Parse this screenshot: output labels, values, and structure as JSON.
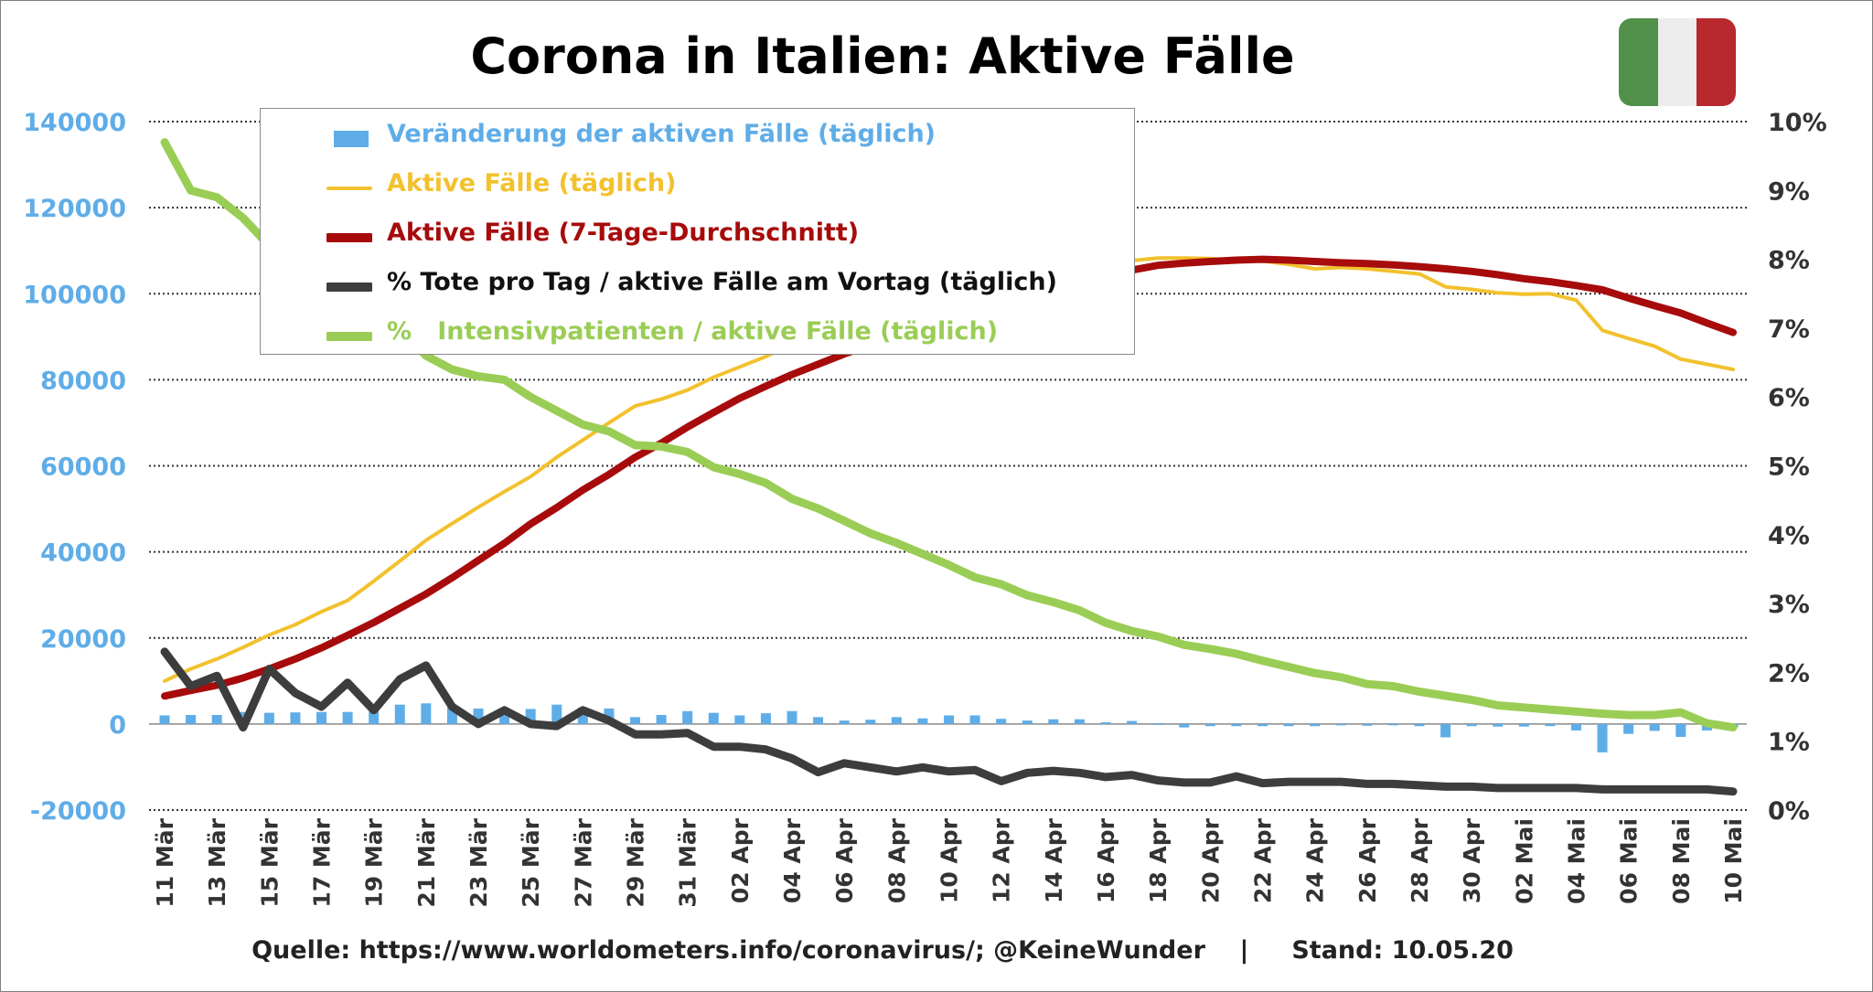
{
  "title": "Corona in Italien: Aktive Fälle",
  "footer": "Quelle: https://www.worldometers.info/coronavirus/; @KeineWunder    |     Stand: 10.05.20",
  "flag": {
    "colors": [
      "#509049",
      "#ededed",
      "#b8282e"
    ]
  },
  "legend": [
    {
      "label": "Veränderung der aktiven Fälle (täglich)",
      "color": "#5fade8",
      "kind": "bar"
    },
    {
      "label": "Aktive Fälle (täglich)",
      "color": "#f2c12e",
      "kind": "line-thin"
    },
    {
      "label": "Aktive Fälle (7-Tage-Durchschnitt)",
      "color": "#a70b0b",
      "kind": "line-thick"
    },
    {
      "label": "% Tote pro Tag / aktive Fälle am Vortag (täglich)",
      "color": "#3d3d3d",
      "kind": "line-thick"
    },
    {
      "label": "%   Intensivpatienten / aktive Fälle (täglich)",
      "color": "#9acd55",
      "kind": "line-thick"
    }
  ],
  "chart_data": {
    "type": "line",
    "title": "Corona in Italien: Aktive Fälle",
    "x": [
      "11 Mär",
      "12 Mär",
      "13 Mär",
      "14 Mär",
      "15 Mär",
      "16 Mär",
      "17 Mär",
      "18 Mär",
      "19 Mär",
      "20 Mär",
      "21 Mär",
      "22 Mär",
      "23 Mär",
      "24 Mär",
      "25 Mär",
      "26 Mär",
      "27 Mär",
      "28 Mär",
      "29 Mär",
      "30 Mär",
      "31 Mär",
      "01 Apr",
      "02 Apr",
      "03 Apr",
      "04 Apr",
      "05 Apr",
      "06 Apr",
      "07 Apr",
      "08 Apr",
      "09 Apr",
      "10 Apr",
      "11 Apr",
      "12 Apr",
      "13 Apr",
      "14 Apr",
      "15 Apr",
      "16 Apr",
      "17 Apr",
      "18 Apr",
      "19 Apr",
      "20 Apr",
      "21 Apr",
      "22 Apr",
      "23 Apr",
      "24 Apr",
      "25 Apr",
      "26 Apr",
      "27 Apr",
      "28 Apr",
      "29 Apr",
      "30 Apr",
      "01 Mai",
      "02 Mai",
      "03 Mai",
      "04 Mai",
      "05 Mai",
      "06 Mai",
      "07 Mai",
      "08 Mai",
      "09 Mai",
      "10 Mai"
    ],
    "x_tick_labels": [
      "11 Mär",
      "13 Mär",
      "15 Mär",
      "17 Mär",
      "19 Mär",
      "21 Mär",
      "23 Mär",
      "25 Mär",
      "27 Mär",
      "29 Mär",
      "31 Mär",
      "02 Apr",
      "04 Apr",
      "06 Apr",
      "08 Apr",
      "10 Apr",
      "12 Apr",
      "14 Apr",
      "16 Apr",
      "18 Apr",
      "20 Apr",
      "22 Apr",
      "24 Apr",
      "26 Apr",
      "28 Apr",
      "30 Apr",
      "02 Mai",
      "04 Mai",
      "06 Mai",
      "08 Mai",
      "10 Mai"
    ],
    "y_left": {
      "min": -20000,
      "max": 140000,
      "ticks": [
        "-20000",
        "0",
        "20000",
        "40000",
        "60000",
        "80000",
        "100000",
        "120000",
        "140000"
      ],
      "color": "#5fade8"
    },
    "y_right": {
      "min": 0,
      "max": 10,
      "ticks": [
        "0%",
        "1%",
        "2%",
        "3%",
        "4%",
        "5%",
        "6%",
        "7%",
        "8%",
        "9%",
        "10%"
      ],
      "color": "#333333"
    },
    "grid": "horizontal dotted",
    "legend_position": "top-left",
    "series": [
      {
        "name": "Veränderung der aktiven Fälle (täglich)",
        "type": "bar",
        "axis": "left",
        "color": "#5fade8",
        "values": [
          2000,
          2100,
          2100,
          2800,
          2600,
          2700,
          2800,
          2800,
          2900,
          4500,
          4800,
          3800,
          3600,
          3000,
          3500,
          4500,
          3800,
          3600,
          1600,
          2100,
          3000,
          2600,
          2000,
          2500,
          3000,
          1600,
          800,
          1000,
          1600,
          1300,
          2000,
          2000,
          1200,
          800,
          1100,
          1100,
          400,
          700,
          0,
          -800,
          -500,
          -500,
          -500,
          -500,
          -500,
          -300,
          -400,
          -300,
          -500,
          -3100,
          -500,
          -600,
          -600,
          -500,
          -1500,
          -6600,
          -2300,
          -1600,
          -3000,
          -1500,
          -800
        ]
      },
      {
        "name": "Aktive Fälle (täglich)",
        "type": "line",
        "axis": "left",
        "color": "#f2c12e",
        "values": [
          10000,
          12800,
          15100,
          17800,
          20700,
          23100,
          26100,
          28700,
          33200,
          37900,
          42700,
          46600,
          50400,
          54000,
          57500,
          62000,
          66000,
          70000,
          73900,
          75500,
          77600,
          80600,
          83000,
          85400,
          88300,
          91200,
          93200,
          94100,
          95500,
          96900,
          98300,
          100300,
          102300,
          103600,
          104200,
          105400,
          106600,
          107700,
          108300,
          108300,
          108200,
          107700,
          107600,
          106800,
          105800,
          106100,
          105800,
          105200,
          104600,
          101600,
          101000,
          100200,
          99900,
          100000,
          98500,
          91500,
          89600,
          87800,
          84800,
          83600,
          82400
        ]
      },
      {
        "name": "Aktive Fälle (7-Tage-Durchschnitt)",
        "type": "line",
        "axis": "left",
        "color": "#a70b0b",
        "values": [
          6500,
          7800,
          9000,
          10700,
          12800,
          15100,
          17700,
          20600,
          23600,
          26900,
          30200,
          34000,
          38000,
          42000,
          46500,
          50300,
          54400,
          58000,
          62000,
          65300,
          69000,
          72400,
          75700,
          78500,
          81200,
          83600,
          86000,
          88100,
          90200,
          92200,
          94100,
          96000,
          97900,
          99600,
          101300,
          102900,
          104400,
          105500,
          106600,
          107100,
          107500,
          107800,
          108000,
          107800,
          107500,
          107200,
          107000,
          106700,
          106300,
          105800,
          105200,
          104400,
          103500,
          102800,
          101900,
          100900,
          99000,
          97200,
          95500,
          93200,
          91000
        ]
      },
      {
        "name": "% Tote pro Tag / aktive Fälle am Vortag (täglich)",
        "type": "line",
        "axis": "right",
        "color": "#3d3d3d",
        "values": [
          2.3,
          1.8,
          1.95,
          1.2,
          2.05,
          1.7,
          1.5,
          1.85,
          1.45,
          1.9,
          2.1,
          1.5,
          1.25,
          1.45,
          1.25,
          1.22,
          1.45,
          1.3,
          1.1,
          1.1,
          1.12,
          0.92,
          0.92,
          0.88,
          0.75,
          0.55,
          0.68,
          0.62,
          0.56,
          0.62,
          0.56,
          0.58,
          0.42,
          0.54,
          0.57,
          0.54,
          0.48,
          0.51,
          0.43,
          0.4,
          0.4,
          0.49,
          0.39,
          0.41,
          0.41,
          0.41,
          0.38,
          0.38,
          0.36,
          0.34,
          0.34,
          0.32,
          0.32,
          0.32,
          0.32,
          0.3,
          0.3,
          0.3,
          0.3,
          0.3,
          0.27
        ]
      },
      {
        "name": "%   Intensivpatienten / aktive Fälle (täglich)",
        "type": "line",
        "axis": "right",
        "color": "#9acd55",
        "values": [
          9.7,
          9.0,
          8.9,
          8.6,
          8.2,
          7.9,
          7.6,
          7.4,
          7.2,
          7.0,
          6.6,
          6.4,
          6.3,
          6.25,
          6.0,
          5.8,
          5.6,
          5.5,
          5.3,
          5.28,
          5.2,
          4.98,
          4.88,
          4.75,
          4.52,
          4.38,
          4.2,
          4.02,
          3.88,
          3.72,
          3.56,
          3.38,
          3.28,
          3.12,
          3.02,
          2.9,
          2.72,
          2.6,
          2.52,
          2.4,
          2.34,
          2.27,
          2.17,
          2.08,
          1.99,
          1.93,
          1.83,
          1.8,
          1.72,
          1.66,
          1.6,
          1.52,
          1.49,
          1.46,
          1.43,
          1.4,
          1.38,
          1.38,
          1.42,
          1.26,
          1.2
        ]
      }
    ]
  }
}
